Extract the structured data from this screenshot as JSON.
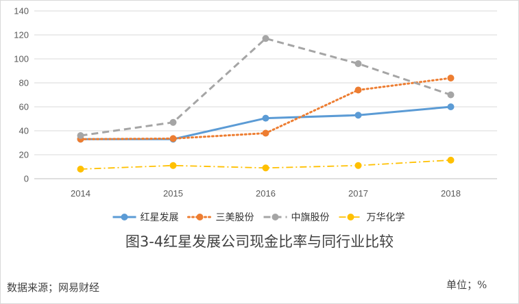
{
  "chart_data": {
    "type": "line",
    "title": "图3-4红星发展公司现金比率与同行业比较",
    "x": [
      "2014",
      "2015",
      "2016",
      "2017",
      "2018"
    ],
    "ylim": [
      0,
      140
    ],
    "yticks": [
      0,
      20,
      40,
      60,
      80,
      100,
      120,
      140
    ],
    "grid": true,
    "legend_position": "bottom",
    "series": [
      {
        "name": "红星发展",
        "values": [
          33,
          33,
          50.5,
          53,
          60
        ],
        "color": "#5b9bd5",
        "style": "solid"
      },
      {
        "name": "三美股份",
        "values": [
          33,
          33.5,
          38,
          74,
          84
        ],
        "color": "#ed7d31",
        "style": "dotted"
      },
      {
        "name": "中旗股份",
        "values": [
          36,
          47,
          117,
          96,
          70
        ],
        "color": "#a5a5a5",
        "style": "dashed"
      },
      {
        "name": "万华化学",
        "values": [
          8,
          11,
          9,
          11,
          15.5
        ],
        "color": "#ffc000",
        "style": "dash-dot"
      }
    ]
  },
  "notes": {
    "source": "数据来源；网易财经",
    "unit": "单位；%"
  }
}
